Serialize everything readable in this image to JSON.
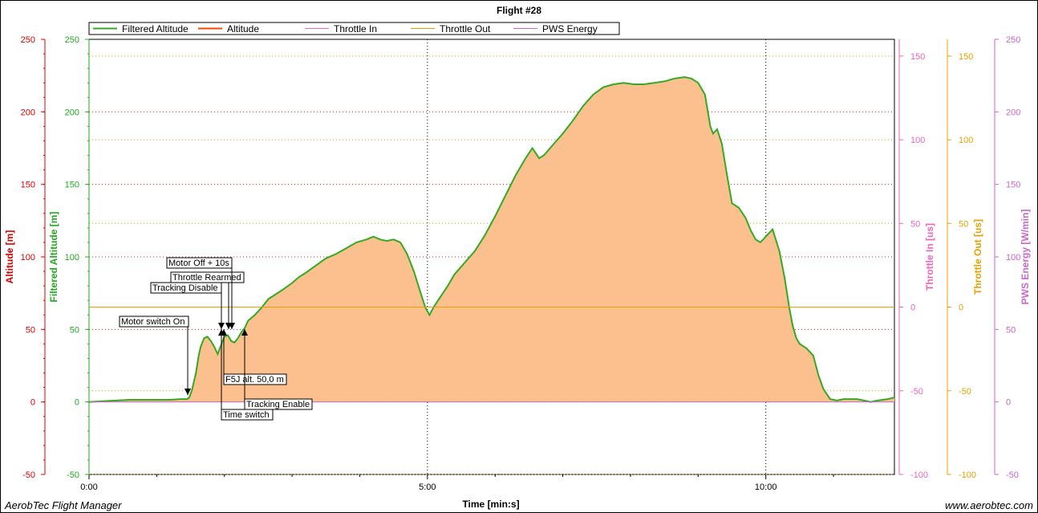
{
  "footer": {
    "app_name": "AerobTec Flight Manager",
    "website": "www.aerobtec.com"
  },
  "chart_data": {
    "type": "area",
    "title": "Flight #28",
    "xlabel": "Time [min:s]",
    "x_unit": "minutes",
    "x_ticks": [
      0,
      5,
      10
    ],
    "x_tick_labels": [
      "0:00",
      "5:00",
      "10:00"
    ],
    "xlim": [
      0,
      11.9
    ],
    "grid": true,
    "legend_placement": "top-left",
    "legend": [
      {
        "name": "Filtered Altitude",
        "color": "#33aa22"
      },
      {
        "name": "Altitude",
        "color": "#ff4400"
      },
      {
        "name": "Throttle In",
        "color": "#ee66bb"
      },
      {
        "name": "Throttle Out",
        "color": "#e8a000"
      },
      {
        "name": "PWS Energy",
        "color": "#cc66cc"
      }
    ],
    "axes": [
      {
        "name": "altitude",
        "label": "Altitude [m]",
        "side": "left",
        "color": "#dd0000",
        "ylim": [
          -50,
          250
        ],
        "ticks": [
          -50,
          0,
          50,
          100,
          150,
          200,
          250
        ]
      },
      {
        "name": "filtered_altitude",
        "label": "Filtered Altitude [m]",
        "side": "left",
        "color": "#22aa22",
        "ylim": [
          -50,
          250
        ],
        "ticks": [
          -50,
          0,
          50,
          100,
          150,
          200,
          250
        ]
      },
      {
        "name": "throttle_in",
        "label": "Throttle In [us]",
        "side": "right",
        "color": "#ee66bb",
        "ylim": [
          -100,
          160
        ],
        "ticks": [
          -100,
          -50,
          0,
          50,
          100,
          150
        ]
      },
      {
        "name": "throttle_out",
        "label": "Throttle Out [us]",
        "side": "right",
        "color": "#e8a000",
        "ylim": [
          -100,
          160
        ],
        "ticks": [
          -100,
          -50,
          0,
          50,
          100,
          150
        ]
      },
      {
        "name": "pws_energy",
        "label": "PWS Energy [W/min]",
        "side": "right",
        "color": "#cc66cc",
        "ylim": [
          -50,
          250
        ],
        "ticks": [
          -50,
          0,
          50,
          100,
          150,
          200,
          250
        ]
      }
    ],
    "series": [
      {
        "name": "Filtered Altitude",
        "axis": "filtered_altitude",
        "x": [
          0,
          0.2,
          0.4,
          0.6,
          0.8,
          1.0,
          1.2,
          1.35,
          1.45,
          1.48,
          1.52,
          1.58,
          1.62,
          1.65,
          1.7,
          1.75,
          1.8,
          1.85,
          1.9,
          1.95,
          2.0,
          2.05,
          2.1,
          2.15,
          2.2,
          2.25,
          2.3,
          2.35,
          2.45,
          2.55,
          2.65,
          2.75,
          2.85,
          3.0,
          3.1,
          3.2,
          3.35,
          3.5,
          3.65,
          3.8,
          3.95,
          4.1,
          4.2,
          4.3,
          4.4,
          4.5,
          4.6,
          4.7,
          4.8,
          4.9,
          4.97,
          5.03,
          5.1,
          5.2,
          5.3,
          5.4,
          5.55,
          5.7,
          5.85,
          6.0,
          6.15,
          6.3,
          6.45,
          6.55,
          6.65,
          6.72,
          6.85,
          7.0,
          7.15,
          7.3,
          7.45,
          7.6,
          7.75,
          7.9,
          8.05,
          8.2,
          8.35,
          8.5,
          8.65,
          8.8,
          8.9,
          9.0,
          9.1,
          9.18,
          9.22,
          9.28,
          9.35,
          9.42,
          9.5,
          9.6,
          9.7,
          9.78,
          9.85,
          9.92,
          10.0,
          10.1,
          10.2,
          10.28,
          10.35,
          10.4,
          10.45,
          10.5,
          10.6,
          10.7,
          10.78,
          10.85,
          10.95,
          11.05,
          11.15,
          11.25,
          11.35,
          11.45,
          11.55,
          11.65,
          11.8,
          11.9
        ],
        "values": [
          0,
          0.5,
          1,
          1.5,
          1.5,
          1.5,
          1.5,
          2,
          2,
          3,
          8,
          20,
          32,
          38,
          44,
          45,
          42,
          38,
          33,
          39,
          45,
          46,
          42,
          41,
          44,
          48,
          51,
          56,
          60,
          65,
          71,
          74,
          77,
          82,
          86,
          89,
          94,
          99,
          102,
          106,
          110,
          112,
          114,
          112,
          111,
          112,
          110,
          102,
          90,
          75,
          65,
          60,
          66,
          73,
          80,
          88,
          96,
          104,
          115,
          128,
          142,
          156,
          168,
          175,
          168,
          170,
          177,
          185,
          194,
          204,
          212,
          217,
          219,
          220,
          219,
          219,
          220,
          221,
          223,
          224,
          223,
          220,
          212,
          190,
          185,
          188,
          178,
          158,
          137,
          134,
          127,
          118,
          112,
          110,
          114,
          119,
          104,
          85,
          64,
          52,
          44,
          40,
          37,
          32,
          18,
          9,
          2,
          1,
          2,
          2,
          2,
          1,
          0,
          1,
          2,
          3
        ]
      },
      {
        "name": "Throttle Out",
        "axis": "throttle_out",
        "x": [
          0,
          11.9
        ],
        "values": [
          0,
          0
        ]
      },
      {
        "name": "PWS Energy",
        "axis": "pws_energy",
        "x": [
          0,
          11.9
        ],
        "values": [
          0,
          0
        ]
      }
    ],
    "annotations": [
      {
        "label": "Motor switch On",
        "x": 1.48
      },
      {
        "label": "Tracking Disable",
        "x": 1.95
      },
      {
        "label": "Throttle Rearmed",
        "x": 2.0
      },
      {
        "label": "Motor Off + 10s",
        "x": 2.15
      },
      {
        "label": "F5J alt. 50,0 m",
        "x": 2.0
      },
      {
        "label": "Time switch",
        "x": 1.95
      },
      {
        "label": "Tracking Enable",
        "x": 2.3
      }
    ]
  }
}
